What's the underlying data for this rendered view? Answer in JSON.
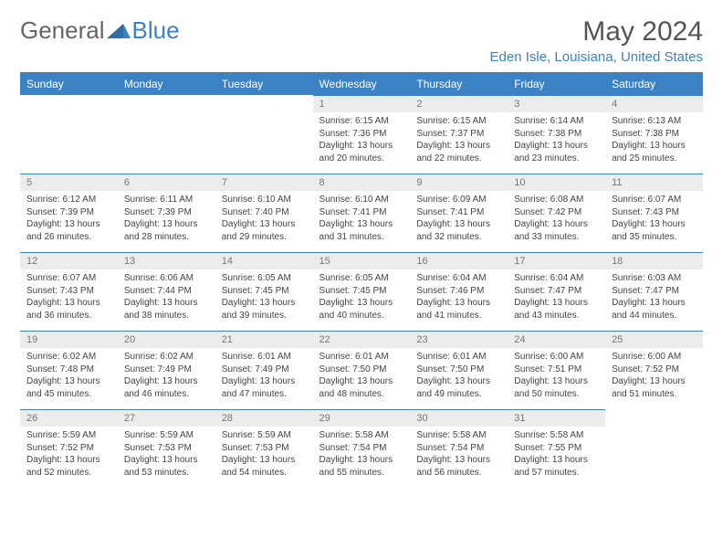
{
  "logo": {
    "text1": "General",
    "text2": "Blue"
  },
  "title": "May 2024",
  "subtitle": "Eden Isle, Louisiana, United States",
  "colors": {
    "accent": "#3b82c4",
    "header_bg": "#3b82c4",
    "header_text": "#ffffff",
    "daynum_bg": "#ececec",
    "daynum_text": "#777777",
    "body_text": "#444444",
    "title_text": "#555555",
    "logo_gray": "#666666"
  },
  "day_headers": [
    "Sunday",
    "Monday",
    "Tuesday",
    "Wednesday",
    "Thursday",
    "Friday",
    "Saturday"
  ],
  "weeks": [
    [
      {
        "n": "",
        "sr": "",
        "ss": "",
        "dl": ""
      },
      {
        "n": "",
        "sr": "",
        "ss": "",
        "dl": ""
      },
      {
        "n": "",
        "sr": "",
        "ss": "",
        "dl": ""
      },
      {
        "n": "1",
        "sr": "6:15 AM",
        "ss": "7:36 PM",
        "dl": "13 hours and 20 minutes."
      },
      {
        "n": "2",
        "sr": "6:15 AM",
        "ss": "7:37 PM",
        "dl": "13 hours and 22 minutes."
      },
      {
        "n": "3",
        "sr": "6:14 AM",
        "ss": "7:38 PM",
        "dl": "13 hours and 23 minutes."
      },
      {
        "n": "4",
        "sr": "6:13 AM",
        "ss": "7:38 PM",
        "dl": "13 hours and 25 minutes."
      }
    ],
    [
      {
        "n": "5",
        "sr": "6:12 AM",
        "ss": "7:39 PM",
        "dl": "13 hours and 26 minutes."
      },
      {
        "n": "6",
        "sr": "6:11 AM",
        "ss": "7:39 PM",
        "dl": "13 hours and 28 minutes."
      },
      {
        "n": "7",
        "sr": "6:10 AM",
        "ss": "7:40 PM",
        "dl": "13 hours and 29 minutes."
      },
      {
        "n": "8",
        "sr": "6:10 AM",
        "ss": "7:41 PM",
        "dl": "13 hours and 31 minutes."
      },
      {
        "n": "9",
        "sr": "6:09 AM",
        "ss": "7:41 PM",
        "dl": "13 hours and 32 minutes."
      },
      {
        "n": "10",
        "sr": "6:08 AM",
        "ss": "7:42 PM",
        "dl": "13 hours and 33 minutes."
      },
      {
        "n": "11",
        "sr": "6:07 AM",
        "ss": "7:43 PM",
        "dl": "13 hours and 35 minutes."
      }
    ],
    [
      {
        "n": "12",
        "sr": "6:07 AM",
        "ss": "7:43 PM",
        "dl": "13 hours and 36 minutes."
      },
      {
        "n": "13",
        "sr": "6:06 AM",
        "ss": "7:44 PM",
        "dl": "13 hours and 38 minutes."
      },
      {
        "n": "14",
        "sr": "6:05 AM",
        "ss": "7:45 PM",
        "dl": "13 hours and 39 minutes."
      },
      {
        "n": "15",
        "sr": "6:05 AM",
        "ss": "7:45 PM",
        "dl": "13 hours and 40 minutes."
      },
      {
        "n": "16",
        "sr": "6:04 AM",
        "ss": "7:46 PM",
        "dl": "13 hours and 41 minutes."
      },
      {
        "n": "17",
        "sr": "6:04 AM",
        "ss": "7:47 PM",
        "dl": "13 hours and 43 minutes."
      },
      {
        "n": "18",
        "sr": "6:03 AM",
        "ss": "7:47 PM",
        "dl": "13 hours and 44 minutes."
      }
    ],
    [
      {
        "n": "19",
        "sr": "6:02 AM",
        "ss": "7:48 PM",
        "dl": "13 hours and 45 minutes."
      },
      {
        "n": "20",
        "sr": "6:02 AM",
        "ss": "7:49 PM",
        "dl": "13 hours and 46 minutes."
      },
      {
        "n": "21",
        "sr": "6:01 AM",
        "ss": "7:49 PM",
        "dl": "13 hours and 47 minutes."
      },
      {
        "n": "22",
        "sr": "6:01 AM",
        "ss": "7:50 PM",
        "dl": "13 hours and 48 minutes."
      },
      {
        "n": "23",
        "sr": "6:01 AM",
        "ss": "7:50 PM",
        "dl": "13 hours and 49 minutes."
      },
      {
        "n": "24",
        "sr": "6:00 AM",
        "ss": "7:51 PM",
        "dl": "13 hours and 50 minutes."
      },
      {
        "n": "25",
        "sr": "6:00 AM",
        "ss": "7:52 PM",
        "dl": "13 hours and 51 minutes."
      }
    ],
    [
      {
        "n": "26",
        "sr": "5:59 AM",
        "ss": "7:52 PM",
        "dl": "13 hours and 52 minutes."
      },
      {
        "n": "27",
        "sr": "5:59 AM",
        "ss": "7:53 PM",
        "dl": "13 hours and 53 minutes."
      },
      {
        "n": "28",
        "sr": "5:59 AM",
        "ss": "7:53 PM",
        "dl": "13 hours and 54 minutes."
      },
      {
        "n": "29",
        "sr": "5:58 AM",
        "ss": "7:54 PM",
        "dl": "13 hours and 55 minutes."
      },
      {
        "n": "30",
        "sr": "5:58 AM",
        "ss": "7:54 PM",
        "dl": "13 hours and 56 minutes."
      },
      {
        "n": "31",
        "sr": "5:58 AM",
        "ss": "7:55 PM",
        "dl": "13 hours and 57 minutes."
      },
      {
        "n": "",
        "sr": "",
        "ss": "",
        "dl": ""
      }
    ]
  ],
  "labels": {
    "sunrise": "Sunrise:",
    "sunset": "Sunset:",
    "daylight": "Daylight:"
  }
}
